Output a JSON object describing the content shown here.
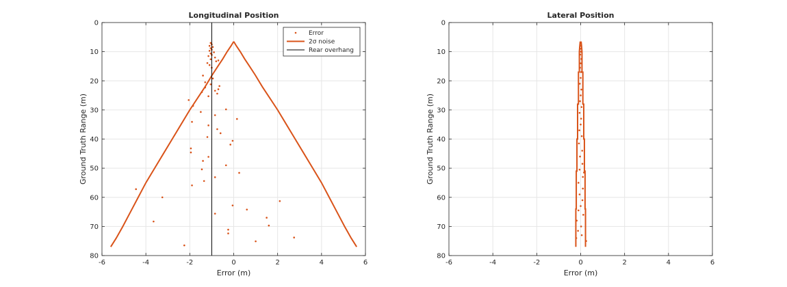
{
  "colors": {
    "error": "#d95319",
    "noise": "#d95319",
    "overhang": "#000000",
    "grid": "#e6e6e6",
    "axis": "#262626"
  },
  "chart_data": [
    {
      "type": "scatter",
      "title": "Longitudinal Position",
      "xlabel": "Error (m)",
      "ylabel": "Ground Truth Range (m)",
      "xlim": [
        -6,
        6
      ],
      "ylim": [
        0,
        80
      ],
      "y_reversed": true,
      "grid": true,
      "xticks": [
        "-6",
        "-4",
        "-2",
        "0",
        "2",
        "4",
        "6"
      ],
      "yticks": [
        "0",
        "10",
        "20",
        "30",
        "40",
        "50",
        "60",
        "70",
        "80"
      ],
      "legend": {
        "location": "top-right",
        "entries": [
          "Error",
          "2σ noise",
          "Rear overhang"
        ]
      },
      "series": [
        {
          "name": "Error",
          "kind": "points",
          "points": [
            [
              -1.05,
              7.0
            ],
            [
              -1.0,
              7.5
            ],
            [
              -1.1,
              8.0
            ],
            [
              -0.95,
              8.4
            ],
            [
              -1.05,
              8.8
            ],
            [
              -1.0,
              9.3
            ],
            [
              -1.1,
              9.7
            ],
            [
              -0.9,
              10.2
            ],
            [
              -1.05,
              10.6
            ],
            [
              -1.0,
              11.1
            ],
            [
              -1.15,
              11.5
            ],
            [
              -0.85,
              12.0
            ],
            [
              -1.05,
              12.6
            ],
            [
              -0.8,
              13.3
            ],
            [
              -1.2,
              13.9
            ],
            [
              -0.7,
              13.0
            ],
            [
              -1.1,
              14.6
            ],
            [
              -1.0,
              15.5
            ],
            [
              -1.4,
              18.2
            ],
            [
              -0.95,
              19.2
            ],
            [
              -1.3,
              20.5
            ],
            [
              -1.05,
              21.2
            ],
            [
              -0.65,
              21.8
            ],
            [
              -1.3,
              22.3
            ],
            [
              -0.7,
              22.9
            ],
            [
              -0.85,
              23.4
            ],
            [
              -1.45,
              23.9
            ],
            [
              -0.75,
              24.4
            ],
            [
              -2.05,
              26.6
            ],
            [
              -1.15,
              25.3
            ],
            [
              -1.85,
              28.6
            ],
            [
              -0.35,
              29.8
            ],
            [
              -1.5,
              30.7
            ],
            [
              -0.85,
              31.8
            ],
            [
              0.15,
              33.1
            ],
            [
              -1.9,
              34.1
            ],
            [
              -1.15,
              35.3
            ],
            [
              -0.75,
              36.6
            ],
            [
              -0.6,
              38.0
            ],
            [
              -1.2,
              39.3
            ],
            [
              -0.05,
              40.6
            ],
            [
              -0.15,
              41.9
            ],
            [
              -1.95,
              43.2
            ],
            [
              -1.95,
              44.6
            ],
            [
              -1.15,
              46.1
            ],
            [
              -1.4,
              47.5
            ],
            [
              -0.35,
              49.0
            ],
            [
              -1.45,
              50.4
            ],
            [
              0.25,
              51.6
            ],
            [
              -0.85,
              53.1
            ],
            [
              -1.35,
              54.4
            ],
            [
              -1.9,
              55.9
            ],
            [
              -4.45,
              57.2
            ],
            [
              -3.25,
              60.0
            ],
            [
              2.1,
              61.3
            ],
            [
              -0.05,
              62.8
            ],
            [
              0.6,
              64.2
            ],
            [
              -0.85,
              65.6
            ],
            [
              1.5,
              67.0
            ],
            [
              -3.65,
              68.3
            ],
            [
              1.6,
              69.7
            ],
            [
              -0.25,
              71.1
            ],
            [
              -0.25,
              72.4
            ],
            [
              2.75,
              73.8
            ],
            [
              1.0,
              75.1
            ],
            [
              -2.25,
              76.5
            ]
          ]
        },
        {
          "name": "2σ noise",
          "kind": "line",
          "right_branch": [
            [
              0.0,
              6.5
            ],
            [
              0.12,
              8.0
            ],
            [
              0.3,
              10.0
            ],
            [
              0.5,
              12.5
            ],
            [
              0.72,
              15.0
            ],
            [
              0.98,
              18.0
            ],
            [
              1.3,
              22.0
            ],
            [
              1.65,
              26.0
            ],
            [
              2.0,
              30.0
            ],
            [
              2.4,
              35.0
            ],
            [
              2.8,
              40.0
            ],
            [
              3.2,
              45.0
            ],
            [
              3.6,
              50.0
            ],
            [
              4.0,
              55.0
            ],
            [
              4.35,
              60.0
            ],
            [
              4.7,
              65.0
            ],
            [
              5.05,
              70.0
            ],
            [
              5.35,
              74.0
            ],
            [
              5.6,
              77.0
            ]
          ],
          "left_branch": [
            [
              0.0,
              6.5
            ],
            [
              -0.12,
              8.0
            ],
            [
              -0.3,
              10.0
            ],
            [
              -0.5,
              12.5
            ],
            [
              -0.72,
              15.0
            ],
            [
              -0.98,
              18.0
            ],
            [
              -1.3,
              22.0
            ],
            [
              -1.65,
              26.0
            ],
            [
              -2.0,
              30.0
            ],
            [
              -2.4,
              35.0
            ],
            [
              -2.8,
              40.0
            ],
            [
              -3.2,
              45.0
            ],
            [
              -3.6,
              50.0
            ],
            [
              -4.0,
              55.0
            ],
            [
              -4.35,
              60.0
            ],
            [
              -4.7,
              65.0
            ],
            [
              -5.05,
              70.0
            ],
            [
              -5.35,
              74.0
            ],
            [
              -5.6,
              77.0
            ]
          ]
        },
        {
          "name": "Rear overhang",
          "kind": "vline",
          "x": -1.0
        }
      ]
    },
    {
      "type": "scatter",
      "title": "Lateral Position",
      "xlabel": "Error (m)",
      "ylabel": "Ground Truth Range (m)",
      "xlim": [
        -6,
        6
      ],
      "ylim": [
        0,
        80
      ],
      "y_reversed": true,
      "grid": true,
      "xticks": [
        "-6",
        "-4",
        "-2",
        "0",
        "2",
        "4",
        "6"
      ],
      "yticks": [
        "0",
        "10",
        "20",
        "30",
        "40",
        "50",
        "60",
        "70",
        "80"
      ],
      "series": [
        {
          "name": "Error",
          "kind": "points",
          "points": [
            [
              0.0,
              7.0
            ],
            [
              0.02,
              8.0
            ],
            [
              -0.01,
              9.0
            ],
            [
              0.01,
              10.0
            ],
            [
              -0.02,
              11.0
            ],
            [
              0.03,
              12.5
            ],
            [
              0.0,
              14.0
            ],
            [
              -0.03,
              15.5
            ],
            [
              0.02,
              17.0
            ],
            [
              0.0,
              19.0
            ],
            [
              -0.04,
              21.0
            ],
            [
              0.03,
              23.0
            ],
            [
              0.0,
              25.0
            ],
            [
              -0.03,
              27.0
            ],
            [
              0.04,
              29.0
            ],
            [
              -0.05,
              31.0
            ],
            [
              0.02,
              33.0
            ],
            [
              0.0,
              35.0
            ],
            [
              -0.06,
              37.0
            ],
            [
              0.05,
              39.0
            ],
            [
              -0.08,
              41.5
            ],
            [
              0.07,
              44.0
            ],
            [
              -0.03,
              46.0
            ],
            [
              0.08,
              48.5
            ],
            [
              -0.05,
              50.5
            ],
            [
              0.15,
              51.5
            ],
            [
              0.1,
              53.0
            ],
            [
              -0.1,
              55.0
            ],
            [
              0.1,
              57.0
            ],
            [
              -0.05,
              59.0
            ],
            [
              0.08,
              61.0
            ],
            [
              0.0,
              63.0
            ],
            [
              -0.1,
              64.5
            ],
            [
              0.12,
              66.0
            ],
            [
              -0.18,
              68.0
            ],
            [
              0.02,
              70.0
            ],
            [
              -0.12,
              71.5
            ],
            [
              0.05,
              73.0
            ],
            [
              -0.2,
              74.0
            ],
            [
              0.25,
              75.0
            ]
          ]
        },
        {
          "name": "2σ noise",
          "kind": "step",
          "right_branch": [
            [
              0.02,
              6.5
            ],
            [
              0.04,
              8.0
            ],
            [
              0.06,
              10.0
            ],
            [
              0.06,
              17.0
            ],
            [
              0.1,
              17.0
            ],
            [
              0.1,
              28.0
            ],
            [
              0.14,
              28.0
            ],
            [
              0.14,
              40.0
            ],
            [
              0.17,
              40.0
            ],
            [
              0.17,
              51.0
            ],
            [
              0.2,
              51.0
            ],
            [
              0.2,
              64.0
            ],
            [
              0.22,
              64.0
            ],
            [
              0.22,
              77.0
            ]
          ],
          "left_branch": [
            [
              -0.02,
              6.5
            ],
            [
              -0.04,
              8.0
            ],
            [
              -0.06,
              10.0
            ],
            [
              -0.06,
              17.0
            ],
            [
              -0.1,
              17.0
            ],
            [
              -0.1,
              28.0
            ],
            [
              -0.14,
              28.0
            ],
            [
              -0.14,
              40.0
            ],
            [
              -0.17,
              40.0
            ],
            [
              -0.17,
              51.0
            ],
            [
              -0.2,
              51.0
            ],
            [
              -0.2,
              64.0
            ],
            [
              -0.22,
              64.0
            ],
            [
              -0.22,
              77.0
            ]
          ]
        }
      ]
    }
  ]
}
